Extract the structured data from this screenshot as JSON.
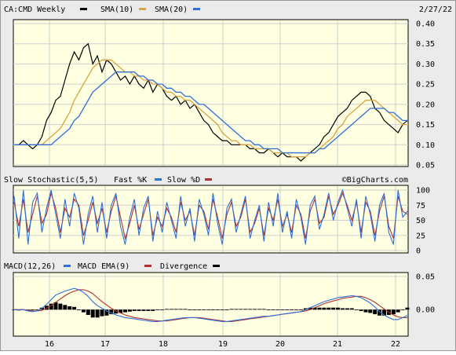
{
  "chart_data": {
    "type": "line",
    "date_label": "2/27/22",
    "watermark": "©BigCharts.com",
    "x_ticks": [
      "16",
      "17",
      "18",
      "19",
      "20",
      "21",
      "22"
    ],
    "price": {
      "legend": [
        {
          "label": "CA:CMD Weekly",
          "color": "#000000"
        },
        {
          "label": "SMA(10)",
          "color": "#d9a441"
        },
        {
          "label": "SMA(20)",
          "color": "#2f6fd6"
        }
      ],
      "ylim": [
        0.05,
        0.4
      ],
      "y_ticks": [
        "0.40",
        "0.35",
        "0.30",
        "0.25",
        "0.20",
        "0.15",
        "0.10",
        "0.05"
      ],
      "close": [
        0.1,
        0.1,
        0.11,
        0.1,
        0.09,
        0.1,
        0.12,
        0.16,
        0.18,
        0.21,
        0.22,
        0.26,
        0.3,
        0.33,
        0.31,
        0.34,
        0.35,
        0.3,
        0.32,
        0.28,
        0.31,
        0.3,
        0.28,
        0.26,
        0.27,
        0.25,
        0.27,
        0.25,
        0.24,
        0.26,
        0.23,
        0.25,
        0.24,
        0.22,
        0.21,
        0.22,
        0.2,
        0.21,
        0.19,
        0.2,
        0.18,
        0.16,
        0.15,
        0.13,
        0.12,
        0.11,
        0.11,
        0.1,
        0.1,
        0.1,
        0.1,
        0.09,
        0.09,
        0.08,
        0.08,
        0.09,
        0.08,
        0.07,
        0.08,
        0.07,
        0.07,
        0.07,
        0.06,
        0.07,
        0.08,
        0.09,
        0.1,
        0.12,
        0.13,
        0.15,
        0.17,
        0.18,
        0.19,
        0.21,
        0.22,
        0.23,
        0.23,
        0.22,
        0.19,
        0.18,
        0.16,
        0.15,
        0.14,
        0.13,
        0.15,
        0.16
      ],
      "sma10": [
        0.1,
        0.1,
        0.1,
        0.1,
        0.1,
        0.1,
        0.1,
        0.11,
        0.12,
        0.13,
        0.14,
        0.16,
        0.18,
        0.21,
        0.23,
        0.25,
        0.27,
        0.29,
        0.3,
        0.31,
        0.31,
        0.31,
        0.3,
        0.29,
        0.28,
        0.28,
        0.27,
        0.27,
        0.26,
        0.26,
        0.25,
        0.25,
        0.24,
        0.23,
        0.23,
        0.22,
        0.22,
        0.21,
        0.21,
        0.2,
        0.19,
        0.18,
        0.17,
        0.16,
        0.15,
        0.13,
        0.12,
        0.11,
        0.11,
        0.1,
        0.1,
        0.1,
        0.09,
        0.09,
        0.09,
        0.09,
        0.08,
        0.08,
        0.08,
        0.08,
        0.07,
        0.07,
        0.07,
        0.07,
        0.08,
        0.08,
        0.09,
        0.1,
        0.11,
        0.12,
        0.14,
        0.15,
        0.17,
        0.18,
        0.19,
        0.2,
        0.21,
        0.21,
        0.21,
        0.2,
        0.19,
        0.18,
        0.17,
        0.16,
        0.15,
        0.15
      ],
      "sma20": [
        0.1,
        0.1,
        0.1,
        0.1,
        0.1,
        0.1,
        0.1,
        0.1,
        0.1,
        0.11,
        0.12,
        0.13,
        0.14,
        0.16,
        0.17,
        0.19,
        0.21,
        0.23,
        0.24,
        0.25,
        0.26,
        0.27,
        0.28,
        0.28,
        0.28,
        0.28,
        0.28,
        0.27,
        0.27,
        0.26,
        0.26,
        0.25,
        0.25,
        0.24,
        0.24,
        0.23,
        0.23,
        0.22,
        0.22,
        0.21,
        0.2,
        0.2,
        0.19,
        0.18,
        0.17,
        0.16,
        0.15,
        0.14,
        0.13,
        0.12,
        0.11,
        0.11,
        0.1,
        0.1,
        0.09,
        0.09,
        0.09,
        0.09,
        0.08,
        0.08,
        0.08,
        0.08,
        0.08,
        0.08,
        0.08,
        0.08,
        0.09,
        0.09,
        0.1,
        0.11,
        0.12,
        0.13,
        0.14,
        0.15,
        0.16,
        0.17,
        0.18,
        0.19,
        0.19,
        0.19,
        0.19,
        0.18,
        0.18,
        0.17,
        0.16,
        0.16
      ]
    },
    "stochastic": {
      "legend": [
        {
          "label": "Slow Stochastic(5,5)",
          "color": "#000000"
        },
        {
          "label": "Fast %K",
          "color": "#2f6fd6"
        },
        {
          "label": "Slow %D",
          "color": "#b03030"
        }
      ],
      "ylim": [
        0,
        100
      ],
      "y_ticks": [
        "100",
        "75",
        "50",
        "25",
        "0"
      ],
      "k": [
        90,
        20,
        100,
        10,
        80,
        95,
        30,
        70,
        100,
        60,
        20,
        85,
        40,
        95,
        70,
        10,
        60,
        90,
        30,
        80,
        20,
        75,
        95,
        40,
        10,
        55,
        85,
        25,
        70,
        90,
        15,
        65,
        30,
        80,
        50,
        20,
        90,
        40,
        70,
        15,
        85,
        60,
        25,
        95,
        45,
        10,
        70,
        85,
        30,
        60,
        90,
        20,
        50,
        75,
        15,
        80,
        40,
        95,
        30,
        65,
        20,
        85,
        55,
        10,
        75,
        90,
        35,
        60,
        95,
        50,
        80,
        100,
        70,
        40,
        85,
        20,
        90,
        60,
        15,
        75,
        95,
        30,
        10,
        100,
        55,
        65
      ],
      "d": [
        80,
        40,
        85,
        30,
        60,
        90,
        45,
        60,
        95,
        70,
        30,
        70,
        55,
        85,
        75,
        25,
        50,
        80,
        45,
        70,
        30,
        65,
        90,
        55,
        20,
        45,
        75,
        35,
        60,
        85,
        25,
        55,
        40,
        70,
        55,
        30,
        80,
        50,
        65,
        25,
        75,
        65,
        35,
        85,
        55,
        20,
        60,
        80,
        40,
        55,
        85,
        30,
        45,
        70,
        25,
        70,
        50,
        85,
        40,
        60,
        30,
        75,
        60,
        20,
        65,
        85,
        45,
        55,
        90,
        60,
        75,
        95,
        75,
        50,
        80,
        30,
        80,
        65,
        25,
        65,
        90,
        40,
        20,
        90,
        65,
        60
      ]
    },
    "macd": {
      "legend": [
        {
          "label": "MACD(12,26)",
          "color": "#2f6fd6"
        },
        {
          "label": "MACD EMA(9)",
          "color": "#b03030"
        },
        {
          "label": "Divergence",
          "color": "#000000"
        }
      ],
      "ylim": [
        -0.04,
        0.05
      ],
      "y_ticks": [
        "0.05",
        "0.00"
      ],
      "macd": [
        0.0,
        -0.001,
        0.0,
        -0.002,
        -0.003,
        -0.002,
        0.002,
        0.008,
        0.015,
        0.022,
        0.025,
        0.028,
        0.03,
        0.032,
        0.03,
        0.026,
        0.02,
        0.012,
        0.006,
        0.002,
        -0.002,
        -0.005,
        -0.008,
        -0.01,
        -0.012,
        -0.013,
        -0.014,
        -0.015,
        -0.016,
        -0.017,
        -0.018,
        -0.018,
        -0.017,
        -0.016,
        -0.015,
        -0.014,
        -0.013,
        -0.012,
        -0.012,
        -0.012,
        -0.013,
        -0.014,
        -0.015,
        -0.016,
        -0.017,
        -0.018,
        -0.018,
        -0.017,
        -0.016,
        -0.015,
        -0.014,
        -0.013,
        -0.012,
        -0.011,
        -0.01,
        -0.01,
        -0.009,
        -0.008,
        -0.007,
        -0.006,
        -0.005,
        -0.004,
        -0.003,
        0.0,
        0.003,
        0.006,
        0.009,
        0.012,
        0.014,
        0.016,
        0.018,
        0.019,
        0.02,
        0.021,
        0.02,
        0.018,
        0.014,
        0.01,
        0.004,
        -0.003,
        -0.008,
        -0.012,
        -0.015,
        -0.015,
        -0.012,
        -0.009
      ],
      "signal": [
        0.0,
        0.0,
        0.0,
        -0.001,
        -0.002,
        -0.002,
        -0.001,
        0.002,
        0.006,
        0.011,
        0.016,
        0.021,
        0.025,
        0.028,
        0.03,
        0.03,
        0.028,
        0.024,
        0.018,
        0.012,
        0.007,
        0.002,
        -0.002,
        -0.005,
        -0.008,
        -0.01,
        -0.012,
        -0.013,
        -0.014,
        -0.015,
        -0.016,
        -0.017,
        -0.017,
        -0.017,
        -0.016,
        -0.015,
        -0.014,
        -0.013,
        -0.012,
        -0.012,
        -0.012,
        -0.013,
        -0.014,
        -0.015,
        -0.016,
        -0.017,
        -0.018,
        -0.018,
        -0.017,
        -0.016,
        -0.015,
        -0.014,
        -0.013,
        -0.012,
        -0.011,
        -0.01,
        -0.009,
        -0.008,
        -0.007,
        -0.006,
        -0.005,
        -0.004,
        -0.003,
        -0.002,
        0.0,
        0.003,
        0.006,
        0.009,
        0.011,
        0.013,
        0.015,
        0.017,
        0.018,
        0.019,
        0.02,
        0.02,
        0.018,
        0.015,
        0.011,
        0.006,
        0.001,
        -0.004,
        -0.008,
        -0.011,
        -0.012,
        -0.012
      ]
    }
  }
}
